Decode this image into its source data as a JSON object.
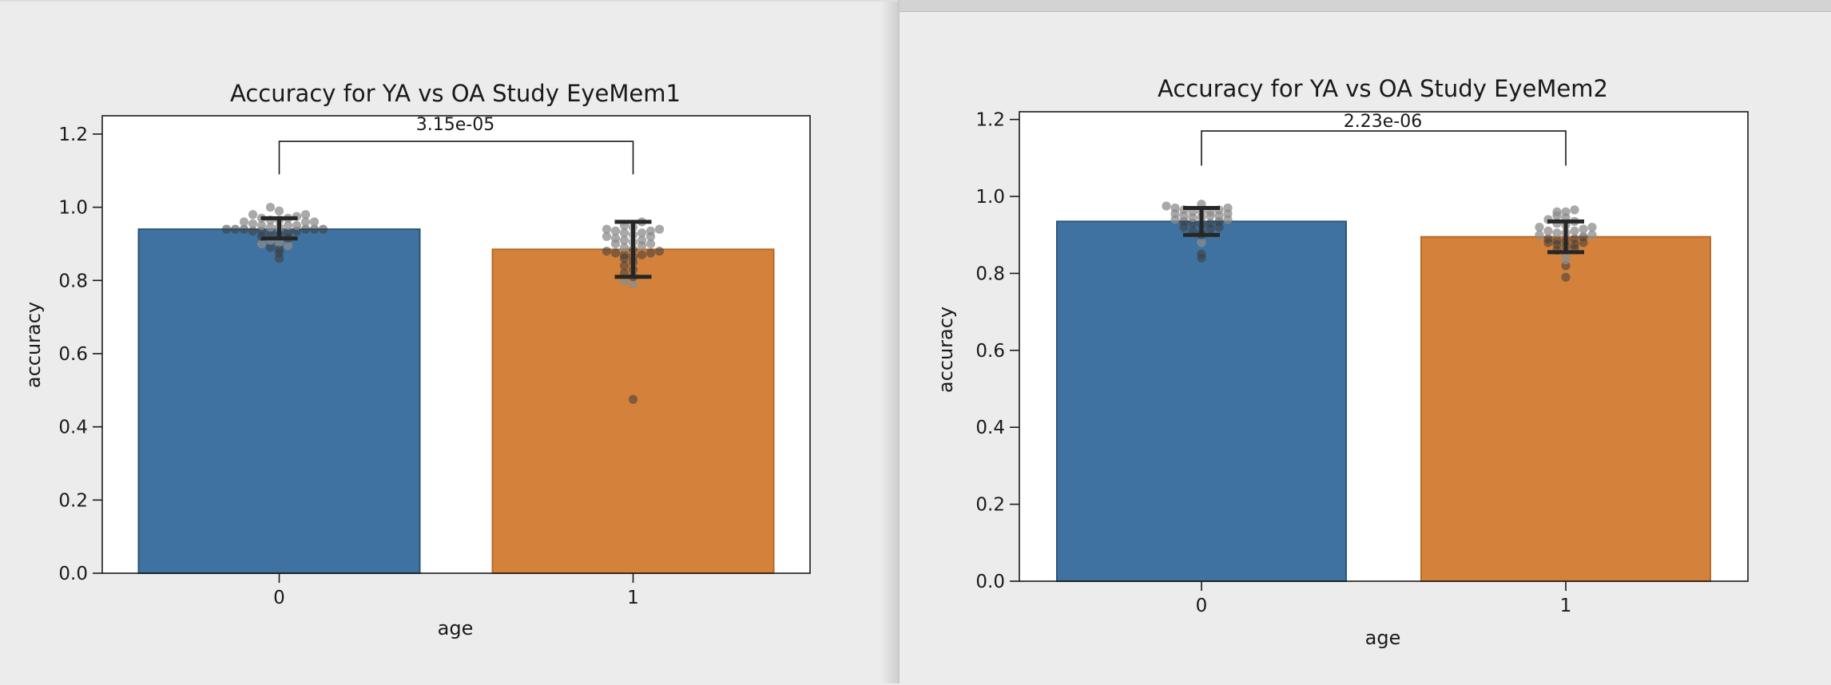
{
  "colors": {
    "ya": "#3f72a0",
    "oa": "#d4823b",
    "dots": "#8c8c8c",
    "err": "#262626"
  },
  "chart_data": [
    {
      "type": "bar",
      "title": "Accuracy for YA vs OA Study EyeMem1",
      "xlabel": "age",
      "ylabel": "accuracy",
      "categories": [
        "0",
        "1"
      ],
      "values": [
        0.94,
        0.885
      ],
      "errors": [
        [
          0.915,
          0.97
        ],
        [
          0.81,
          0.96
        ]
      ],
      "ylim": [
        0,
        1.25
      ],
      "yticks": [
        "0.0",
        "0.2",
        "0.4",
        "0.6",
        "0.8",
        "1.0",
        "1.2"
      ],
      "significance": {
        "label": "3.15e-05",
        "y": 1.18,
        "drop": 1.09
      },
      "points": [
        [
          0.86,
          0.875,
          0.885,
          0.89,
          0.895,
          0.9,
          0.905,
          0.91,
          0.915,
          0.92,
          0.925,
          0.93,
          0.93,
          0.935,
          0.935,
          0.935,
          0.94,
          0.94,
          0.94,
          0.94,
          0.94,
          0.94,
          0.945,
          0.945,
          0.95,
          0.95,
          0.95,
          0.955,
          0.96,
          0.96,
          0.96,
          0.965,
          0.965,
          0.97,
          0.97,
          0.975,
          0.98,
          0.98,
          0.99,
          1.0
        ],
        [
          0.475,
          0.79,
          0.8,
          0.81,
          0.82,
          0.83,
          0.84,
          0.85,
          0.86,
          0.865,
          0.87,
          0.87,
          0.875,
          0.875,
          0.88,
          0.88,
          0.885,
          0.89,
          0.895,
          0.9,
          0.9,
          0.905,
          0.91,
          0.91,
          0.915,
          0.92,
          0.92,
          0.925,
          0.93,
          0.93,
          0.935,
          0.935,
          0.94,
          0.94,
          0.945,
          0.95,
          0.96
        ]
      ]
    },
    {
      "type": "bar",
      "title": "Accuracy for YA vs OA Study EyeMem2",
      "xlabel": "age",
      "ylabel": "accuracy",
      "categories": [
        "0",
        "1"
      ],
      "values": [
        0.935,
        0.895
      ],
      "errors": [
        [
          0.9,
          0.97
        ],
        [
          0.855,
          0.935
        ]
      ],
      "ylim": [
        0,
        1.22
      ],
      "yticks": [
        "0.0",
        "0.2",
        "0.4",
        "0.6",
        "0.8",
        "1.0",
        "1.2"
      ],
      "significance": {
        "label": "2.23e-06",
        "y": 1.17,
        "drop": 1.08
      },
      "points": [
        [
          0.84,
          0.85,
          0.88,
          0.9,
          0.905,
          0.91,
          0.915,
          0.92,
          0.92,
          0.925,
          0.93,
          0.93,
          0.935,
          0.935,
          0.94,
          0.94,
          0.945,
          0.945,
          0.95,
          0.95,
          0.95,
          0.955,
          0.955,
          0.96,
          0.96,
          0.96,
          0.965,
          0.965,
          0.97,
          0.97,
          0.975,
          0.98
        ],
        [
          0.79,
          0.82,
          0.835,
          0.85,
          0.86,
          0.865,
          0.87,
          0.875,
          0.875,
          0.88,
          0.88,
          0.885,
          0.885,
          0.89,
          0.89,
          0.895,
          0.9,
          0.9,
          0.905,
          0.905,
          0.91,
          0.91,
          0.915,
          0.92,
          0.92,
          0.925,
          0.93,
          0.935,
          0.94,
          0.945,
          0.95,
          0.96,
          0.96,
          0.965
        ]
      ]
    }
  ]
}
